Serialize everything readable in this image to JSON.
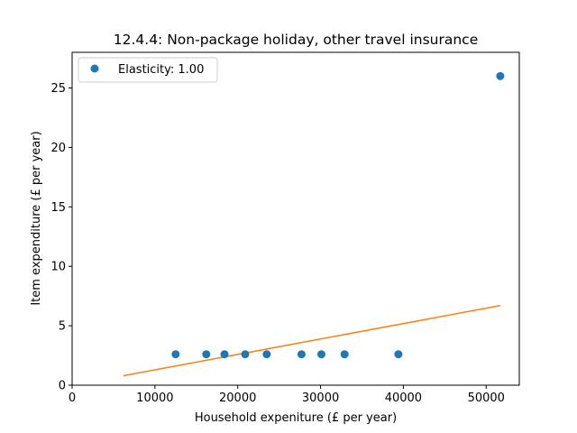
{
  "chart_data": {
    "type": "scatter",
    "title": "12.4.4: Non-package holiday, other travel insurance",
    "xlabel": "Household expeniture (£ per year)",
    "ylabel": "Item expenditure (£ per year)",
    "xlim": [
      0,
      54000
    ],
    "ylim": [
      0,
      28
    ],
    "xticks": [
      0,
      10000,
      20000,
      30000,
      40000,
      50000
    ],
    "yticks": [
      0,
      5,
      10,
      15,
      20,
      25
    ],
    "grid": false,
    "legend_position": "top-left",
    "series": [
      {
        "name": "Elasticity: 1.00",
        "kind": "points",
        "color": "#1f77b4",
        "x": [
          12500,
          16200,
          18400,
          20900,
          23500,
          27700,
          30100,
          32900,
          39400,
          51700
        ],
        "y": [
          2.6,
          2.6,
          2.6,
          2.6,
          2.6,
          2.6,
          2.6,
          2.6,
          2.6,
          26.0
        ]
      },
      {
        "kind": "line",
        "color": "#ff7f0e",
        "x": [
          6200,
          51700
        ],
        "y": [
          0.8,
          6.7
        ]
      }
    ]
  }
}
